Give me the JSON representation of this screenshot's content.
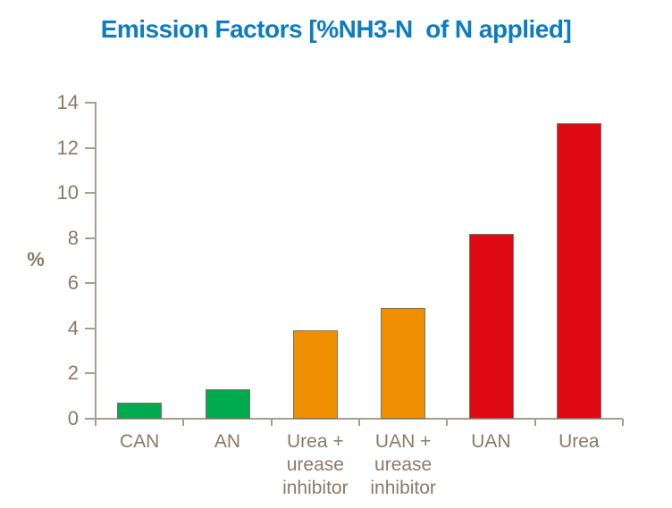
{
  "title": {
    "text": "Emission Factors [%NH3-N  of N applied]",
    "color": "#0e7cc1"
  },
  "chart_data": {
    "type": "bar",
    "title": "Emission Factors [%NH3-N of N applied]",
    "ylabel": "%",
    "xlabel": "",
    "categories": [
      "CAN",
      "AN",
      "Urea +\nurease\ninhibitor",
      "UAN +\nurease\ninhibitor",
      "UAN",
      "Urea"
    ],
    "values": [
      0.7,
      1.3,
      3.9,
      4.9,
      8.2,
      13.1
    ],
    "bar_colors": [
      "#00ab4f",
      "#00ab4f",
      "#f09000",
      "#f09000",
      "#e00a15",
      "#e00a15"
    ],
    "bar_border_color": "#7b7164",
    "axis_color": "#a89c8d",
    "tick_label_color": "#8a7a68",
    "title_color": "#0e7cc1",
    "ylim": [
      0,
      14
    ],
    "yticks": [
      0,
      2,
      4,
      6,
      8,
      10,
      12,
      14
    ],
    "grid": false,
    "legend": "none"
  }
}
